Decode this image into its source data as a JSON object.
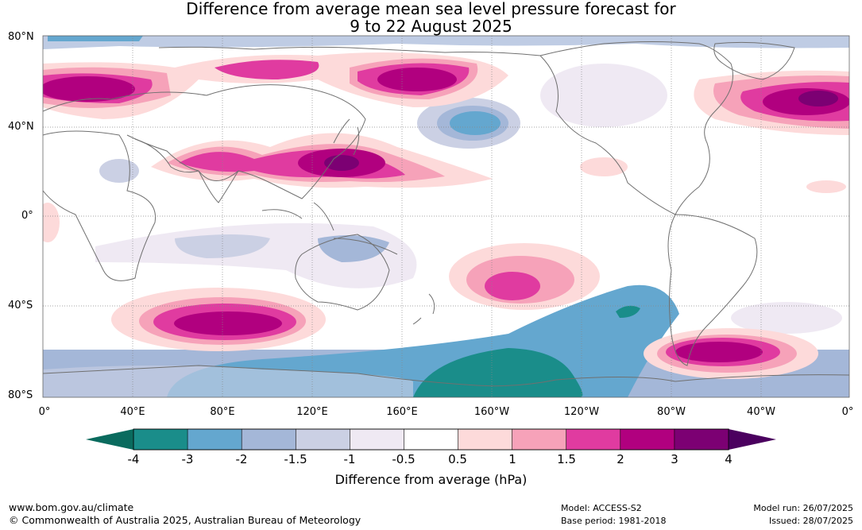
{
  "title": {
    "line1": "Difference from average mean sea level pressure forecast for",
    "line2": "9 to 22 August 2025"
  },
  "map": {
    "lat_labels": [
      "80°N",
      "40°N",
      "0°",
      "40°S",
      "80°S"
    ],
    "lon_labels": [
      "0°",
      "40°E",
      "80°E",
      "120°E",
      "160°E",
      "160°W",
      "120°W",
      "80°W",
      "40°W",
      "0°"
    ],
    "colors": {
      "ocean_bg": "#ffffff",
      "coastline": "#707070",
      "grid": "#888888"
    }
  },
  "colorbar": {
    "title": "Difference from average (hPa)",
    "tick_labels": [
      "-4",
      "-3",
      "-2",
      "-1.5",
      "-1",
      "-0.5",
      "0.5",
      "1",
      "1.5",
      "2",
      "3",
      "4"
    ],
    "bin_colors": [
      "#1a8d8a",
      "#64a7cf",
      "#a4b7d8",
      "#cbd0e4",
      "#efe9f3",
      "#ffffff",
      "#fddada",
      "#f6a2b9",
      "#e03ba0",
      "#b1007f",
      "#7c0073"
    ],
    "under_color": "#0a6b5e",
    "over_color": "#4b005f"
  },
  "footer": {
    "website": "www.bom.gov.au/climate",
    "copyright": "© Commonwealth of Australia 2025, Australian Bureau of Meteorology",
    "model": "Model: ACCESS-S2",
    "base_period": "Base period: 1981-2018",
    "model_run": "Model run: 26/07/2025",
    "issued": "Issued: 28/07/2025"
  }
}
